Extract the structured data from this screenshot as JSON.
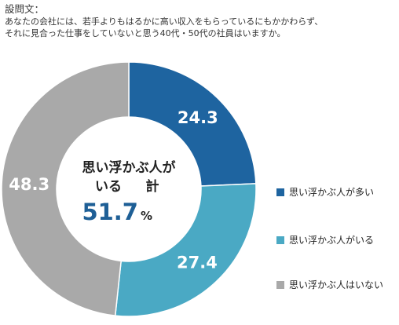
{
  "question": {
    "label": "設問文：",
    "lines": [
      "あなたの会社には、若手よりもはるかに高い収入をもらっているにもかかわらず、",
      "それに見合った仕事をしていないと思う40代・50代の社員はいますか。"
    ]
  },
  "center": {
    "line1": "思い浮かぶ人が",
    "line2_a": "いる",
    "line2_b": "計",
    "value": "51.7",
    "unit": "%"
  },
  "colors": {
    "many": "#1e64a0",
    "some": "#4aa9c4",
    "none": "#a9a9a9",
    "center_value": "#1e5f96"
  },
  "chart_data": {
    "type": "pie",
    "donut": true,
    "start": "top",
    "direction": "clockwise",
    "unit": "%",
    "series": [
      {
        "name": "思い浮かぶ人が多い",
        "value": 24.3,
        "label": "24.3",
        "color": "#1e64a0"
      },
      {
        "name": "思い浮かぶ人がいる",
        "value": 27.4,
        "label": "27.4",
        "color": "#4aa9c4"
      },
      {
        "name": "思い浮かぶ人はいない",
        "value": 48.3,
        "label": "48.3",
        "color": "#a9a9a9"
      }
    ],
    "legend_position": "right"
  }
}
